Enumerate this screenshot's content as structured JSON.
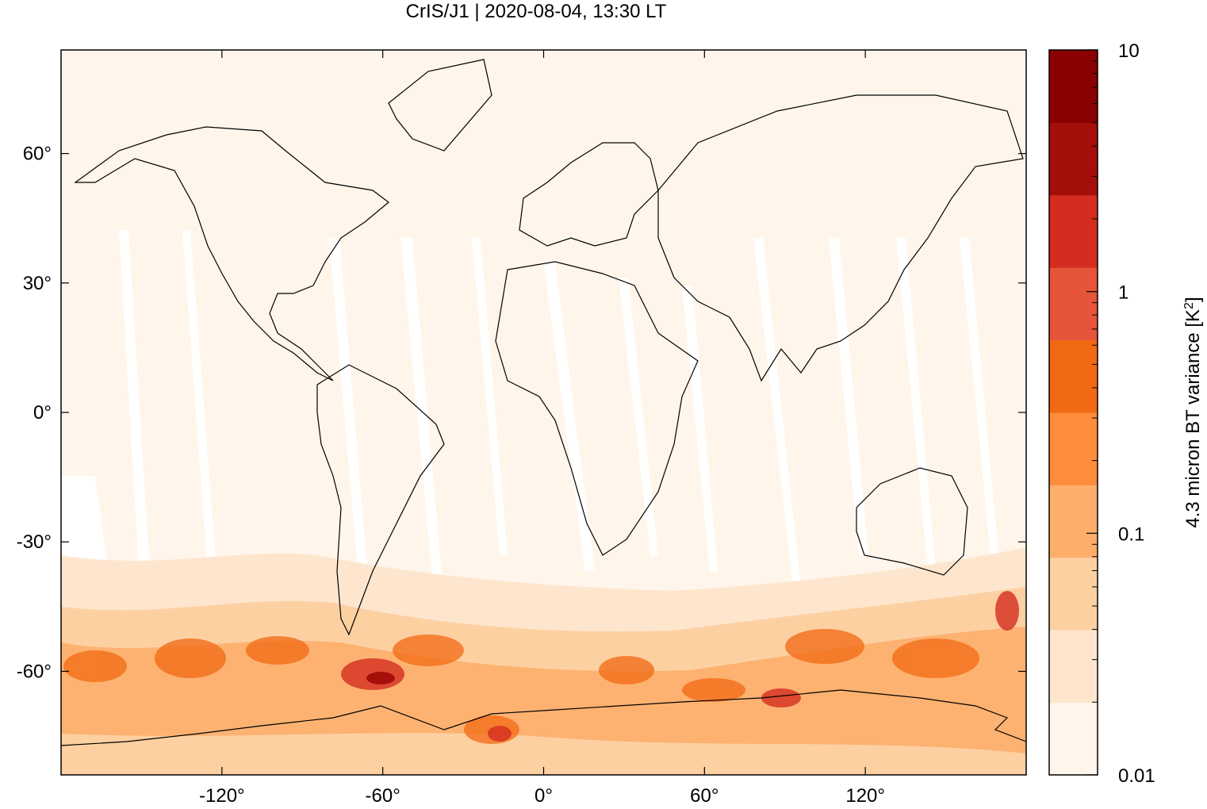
{
  "title": "CrIS/J1 | 2020-08-04, 13:30 LT",
  "axes": {
    "x_ticks": [
      {
        "value": -120,
        "label": "-120°"
      },
      {
        "value": -60,
        "label": "-60°"
      },
      {
        "value": 0,
        "label": "0°"
      },
      {
        "value": 60,
        "label": "60°"
      },
      {
        "value": 120,
        "label": "120°"
      }
    ],
    "y_ticks": [
      {
        "value": 60,
        "label": "60°"
      },
      {
        "value": 30,
        "label": "30°"
      },
      {
        "value": 0,
        "label": "0°"
      },
      {
        "value": -30,
        "label": "-30°"
      },
      {
        "value": -60,
        "label": "-60°"
      }
    ],
    "lon_range": [
      -180,
      180
    ],
    "lat_range": [
      -84,
      84
    ]
  },
  "colorbar": {
    "label_main": "4.3 micron BT variance [K",
    "label_sup": "2",
    "label_end": "]",
    "scale": "log",
    "range": [
      0.01,
      10
    ],
    "tick_labels": [
      {
        "value": 10,
        "label": "10"
      },
      {
        "value": 1,
        "label": "1"
      },
      {
        "value": 0.1,
        "label": "0.1"
      },
      {
        "value": 0.01,
        "label": "0.01"
      }
    ],
    "colors": [
      "#fff5eb",
      "#fee6ce",
      "#fdd0a2",
      "#fdae6b",
      "#fd8d3c",
      "#f16913",
      "#e6553a",
      "#d42d20",
      "#a50f0a",
      "#8b0000"
    ]
  }
}
